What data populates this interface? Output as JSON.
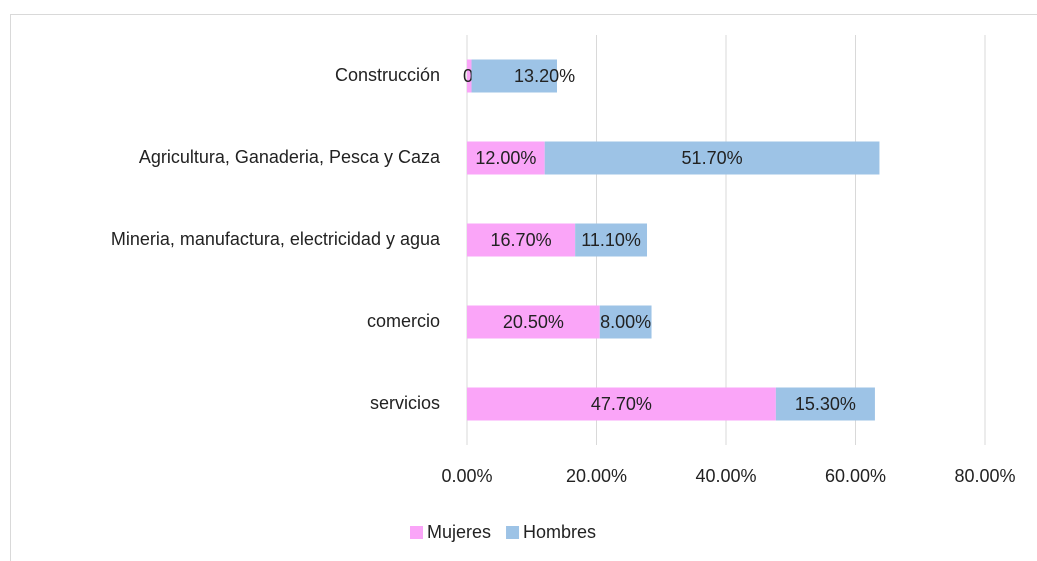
{
  "chart_data": {
    "type": "stacked-barh",
    "categories": [
      "Construcción",
      "Agricultura, Ganaderia, Pesca y Caza",
      "Mineria, manufactura, electricidad y agua",
      "comercio",
      "servicios"
    ],
    "series": [
      {
        "name": "Mujeres",
        "color": "#faa5f8",
        "values": [
          0.7,
          12.0,
          16.7,
          20.5,
          47.7
        ],
        "value_labels": [
          "0.70%",
          "12.00%",
          "16.70%",
          "20.50%",
          "47.70%"
        ]
      },
      {
        "name": "Hombres",
        "color": "#9dc3e6",
        "values": [
          13.2,
          51.7,
          11.1,
          8.0,
          15.3
        ],
        "value_labels": [
          "13.20%",
          "51.70%",
          "11.10%",
          "8.00%",
          "15.30%"
        ]
      }
    ],
    "xlim": [
      0,
      80
    ],
    "xticks": [
      {
        "value": 0,
        "label": "0.00%"
      },
      {
        "value": 20,
        "label": "20.00%"
      },
      {
        "value": 40,
        "label": "40.00%"
      },
      {
        "value": 60,
        "label": "60.00%"
      },
      {
        "value": 80,
        "label": "80.00%"
      }
    ],
    "grid": true,
    "legend": "bottom"
  }
}
